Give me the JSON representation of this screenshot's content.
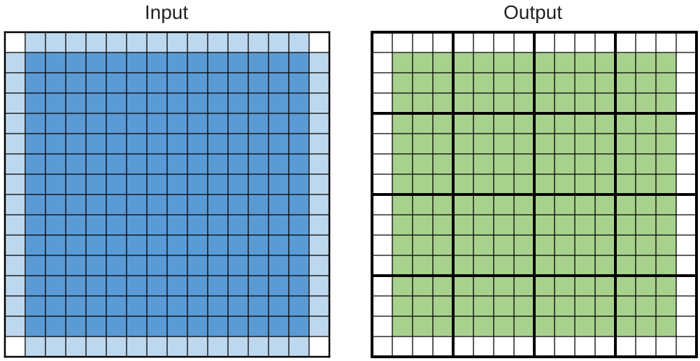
{
  "input": {
    "title": "Input",
    "rows": 16,
    "cols": 16,
    "colors": {
      "interior": "#5b9bd5",
      "halo": "#bdd7ee",
      "corner": "#ffffff",
      "line": "#000000"
    }
  },
  "output": {
    "title": "Output",
    "rows": 16,
    "cols": 16,
    "block_size": 4,
    "filled_rows": [
      1,
      14
    ],
    "filled_cols": [
      1,
      14
    ],
    "colors": {
      "fill": "#a9d18e",
      "empty": "#ffffff",
      "line": "#000000"
    }
  }
}
